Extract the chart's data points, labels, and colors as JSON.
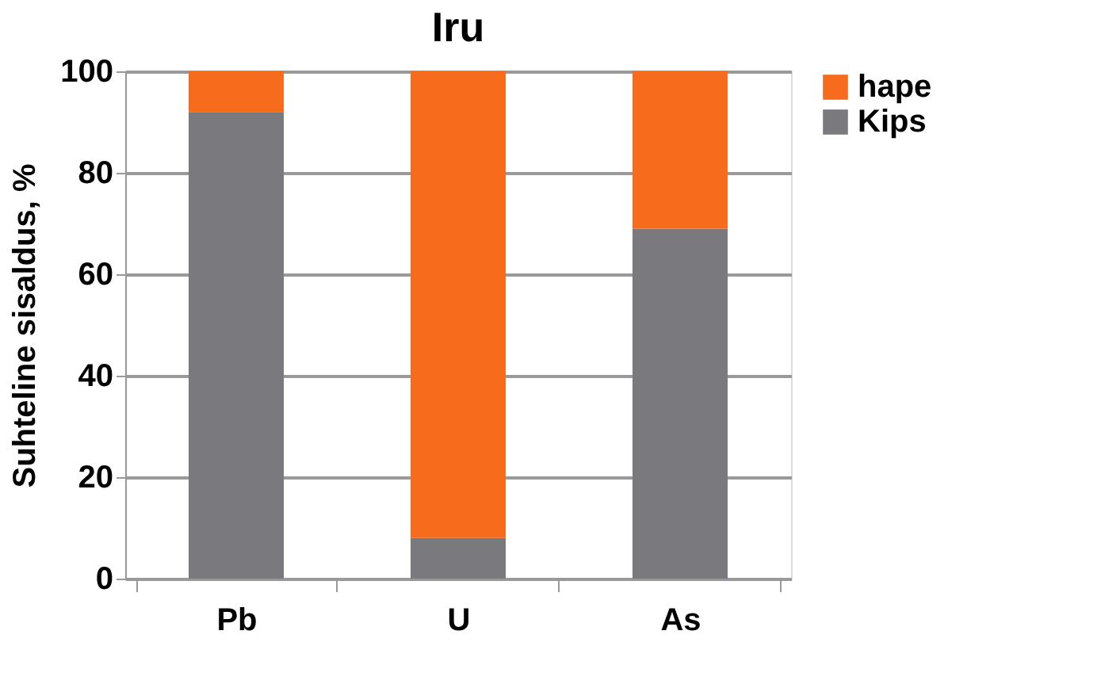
{
  "chart_data": {
    "type": "bar",
    "title": "Iru",
    "ylabel": "Suhteline sisaldus, %",
    "categories": [
      "Pb",
      "U",
      "As"
    ],
    "stacked": true,
    "series": [
      {
        "name": "Kips",
        "color": "#7a7a7e",
        "values": [
          92,
          8,
          69
        ]
      },
      {
        "name": "hape",
        "color": "#f76b1c",
        "values": [
          8,
          92,
          31
        ]
      }
    ],
    "ylim": [
      0,
      100
    ],
    "yticks": [
      0,
      20,
      40,
      60,
      80,
      100
    ],
    "grid": "y",
    "legend": "right"
  }
}
